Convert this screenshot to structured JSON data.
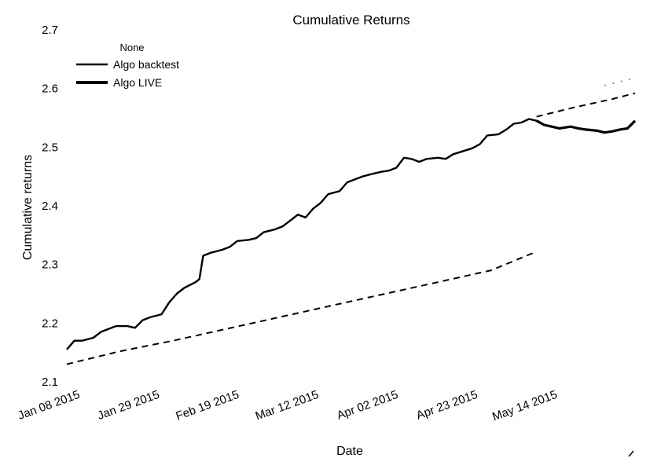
{
  "chart_data": {
    "type": "line",
    "title": "Cumulative Returns",
    "xlabel": "Date",
    "ylabel": "Cumulative returns",
    "xlim": [
      "2015-01-06",
      "2015-06-05"
    ],
    "ylim": [
      2.1,
      2.7
    ],
    "y_ticks": [
      "2.1",
      "2.2",
      "2.3",
      "2.4",
      "2.5",
      "2.6",
      "2.7"
    ],
    "x_ticks": [
      {
        "date": "2015-01-08",
        "label": "Jan 08 2015"
      },
      {
        "date": "2015-01-29",
        "label": "Jan 29 2015"
      },
      {
        "date": "2015-02-19",
        "label": "Feb 19 2015"
      },
      {
        "date": "2015-03-12",
        "label": "Mar 12 2015"
      },
      {
        "date": "2015-04-02",
        "label": "Apr 02 2015"
      },
      {
        "date": "2015-04-23",
        "label": "Apr 23 2015"
      },
      {
        "date": "2015-05-14",
        "label": "May 14 2015"
      }
    ],
    "grid": false,
    "legend": {
      "title": "None",
      "placement": "top-left"
    },
    "series": [
      {
        "name": "Algo backtest",
        "style": "solid",
        "color": "#000000",
        "points": [
          [
            "2015-01-06",
            2.155
          ],
          [
            "2015-01-08",
            2.17
          ],
          [
            "2015-01-10",
            2.17
          ],
          [
            "2015-01-13",
            2.175
          ],
          [
            "2015-01-15",
            2.185
          ],
          [
            "2015-01-17",
            2.19
          ],
          [
            "2015-01-19",
            2.195
          ],
          [
            "2015-01-22",
            2.195
          ],
          [
            "2015-01-24",
            2.192
          ],
          [
            "2015-01-26",
            2.205
          ],
          [
            "2015-01-28",
            2.21
          ],
          [
            "2015-01-31",
            2.215
          ],
          [
            "2015-02-02",
            2.235
          ],
          [
            "2015-02-04",
            2.25
          ],
          [
            "2015-02-06",
            2.26
          ],
          [
            "2015-02-09",
            2.27
          ],
          [
            "2015-02-10",
            2.275
          ],
          [
            "2015-02-11",
            2.315
          ],
          [
            "2015-02-13",
            2.32
          ],
          [
            "2015-02-16",
            2.325
          ],
          [
            "2015-02-18",
            2.33
          ],
          [
            "2015-02-20",
            2.34
          ],
          [
            "2015-02-23",
            2.342
          ],
          [
            "2015-02-25",
            2.345
          ],
          [
            "2015-02-27",
            2.355
          ],
          [
            "2015-03-02",
            2.36
          ],
          [
            "2015-03-04",
            2.365
          ],
          [
            "2015-03-06",
            2.375
          ],
          [
            "2015-03-08",
            2.385
          ],
          [
            "2015-03-10",
            2.38
          ],
          [
            "2015-03-12",
            2.395
          ],
          [
            "2015-03-14",
            2.405
          ],
          [
            "2015-03-16",
            2.42
          ],
          [
            "2015-03-19",
            2.425
          ],
          [
            "2015-03-21",
            2.44
          ],
          [
            "2015-03-23",
            2.445
          ],
          [
            "2015-03-25",
            2.45
          ],
          [
            "2015-03-28",
            2.455
          ],
          [
            "2015-03-30",
            2.458
          ],
          [
            "2015-04-01",
            2.46
          ],
          [
            "2015-04-03",
            2.465
          ],
          [
            "2015-04-05",
            2.482
          ],
          [
            "2015-04-07",
            2.48
          ],
          [
            "2015-04-09",
            2.475
          ],
          [
            "2015-04-11",
            2.48
          ],
          [
            "2015-04-14",
            2.482
          ],
          [
            "2015-04-16",
            2.48
          ],
          [
            "2015-04-18",
            2.488
          ],
          [
            "2015-04-20",
            2.492
          ],
          [
            "2015-04-23",
            2.498
          ],
          [
            "2015-04-25",
            2.505
          ],
          [
            "2015-04-27",
            2.52
          ],
          [
            "2015-04-30",
            2.522
          ],
          [
            "2015-05-02",
            2.53
          ],
          [
            "2015-05-04",
            2.54
          ],
          [
            "2015-05-06",
            2.542
          ],
          [
            "2015-05-08",
            2.548
          ],
          [
            "2015-05-10",
            2.545
          ]
        ]
      },
      {
        "name": "Algo LIVE",
        "style": "solid",
        "color": "#000000",
        "points": [
          [
            "2015-05-10",
            2.545
          ],
          [
            "2015-05-12",
            2.538
          ],
          [
            "2015-05-14",
            2.535
          ],
          [
            "2015-05-16",
            2.532
          ],
          [
            "2015-05-19",
            2.535
          ],
          [
            "2015-05-21",
            2.532
          ],
          [
            "2015-05-23",
            2.53
          ],
          [
            "2015-05-26",
            2.528
          ],
          [
            "2015-05-28",
            2.525
          ],
          [
            "2015-05-30",
            2.527
          ],
          [
            "2015-06-01",
            2.53
          ],
          [
            "2015-06-03",
            2.532
          ],
          [
            "2015-06-05",
            2.545
          ]
        ]
      },
      {
        "name": "",
        "style": "dashed",
        "color": "#000000",
        "points": [
          [
            "2015-01-06",
            2.13
          ],
          [
            "2015-01-20",
            2.152
          ],
          [
            "2015-02-03",
            2.17
          ],
          [
            "2015-02-17",
            2.19
          ],
          [
            "2015-03-03",
            2.21
          ],
          [
            "2015-03-17",
            2.23
          ],
          [
            "2015-03-31",
            2.25
          ],
          [
            "2015-04-14",
            2.27
          ],
          [
            "2015-04-28",
            2.29
          ],
          [
            "2015-05-10",
            2.322
          ]
        ]
      },
      {
        "name": "",
        "style": "dashed",
        "color": "#000000",
        "points": [
          [
            "2015-05-10",
            2.552
          ],
          [
            "2015-05-20",
            2.568
          ],
          [
            "2015-05-30",
            2.582
          ],
          [
            "2015-06-05",
            2.592
          ]
        ]
      },
      {
        "name": "",
        "style": "dotted",
        "color": "#555555",
        "points": [
          [
            "2015-05-28",
            2.605
          ],
          [
            "2015-06-05",
            2.618
          ]
        ]
      }
    ]
  }
}
